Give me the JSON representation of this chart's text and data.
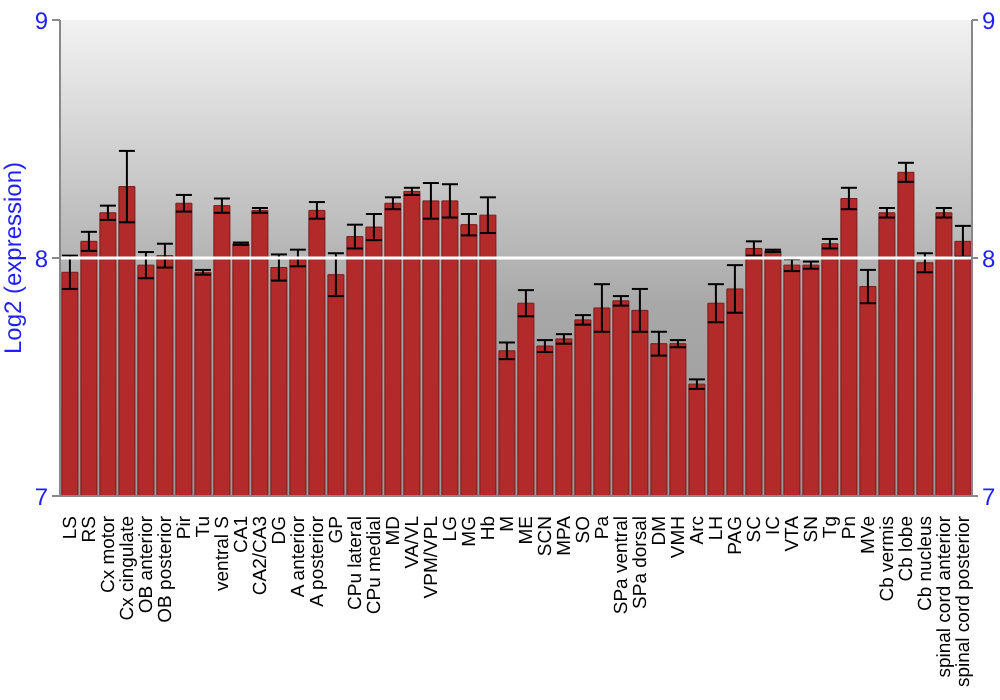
{
  "chart_data": {
    "type": "bar",
    "ylabel": "Log2 (expression)",
    "categories": [
      "LS",
      "RS",
      "Cx motor",
      "Cx cingulate",
      "OB anterior",
      "OB posterior",
      "Pir",
      "Tu",
      "ventral S",
      "CA1",
      "CA2/CA3",
      "DG",
      "A anterior",
      "A posterior",
      "GP",
      "CPu lateral",
      "CPu medial",
      "MD",
      "VA/VL",
      "VPM/VPL",
      "LG",
      "MG",
      "Hb",
      "M",
      "ME",
      "SCN",
      "MPA",
      "SO",
      "Pa",
      "SPa ventral",
      "SPa dorsal",
      "DM",
      "VMH",
      "Arc",
      "LH",
      "PAG",
      "SC",
      "IC",
      "VTA",
      "SN",
      "Tg",
      "Pn",
      "MVe",
      "Cb vermis",
      "Cb lobe",
      "Cb nucleus",
      "spinal cord anterior",
      "spinal cord posterior"
    ],
    "values": [
      7.94,
      8.07,
      8.19,
      8.3,
      7.97,
      8.01,
      8.23,
      7.94,
      8.22,
      8.06,
      8.2,
      7.96,
      8.0,
      8.2,
      7.93,
      8.09,
      8.13,
      8.23,
      8.28,
      8.24,
      8.24,
      8.14,
      8.18,
      7.61,
      7.81,
      7.63,
      7.66,
      7.74,
      7.79,
      7.82,
      7.78,
      7.64,
      7.64,
      7.47,
      7.81,
      7.87,
      8.04,
      8.03,
      7.97,
      7.97,
      8.06,
      8.25,
      7.88,
      8.19,
      8.36,
      7.98,
      8.19,
      8.07
    ],
    "errors": [
      0.07,
      0.04,
      0.03,
      0.15,
      0.055,
      0.05,
      0.035,
      0.01,
      0.03,
      0.005,
      0.01,
      0.055,
      0.035,
      0.035,
      0.09,
      0.05,
      0.055,
      0.025,
      0.015,
      0.075,
      0.07,
      0.045,
      0.075,
      0.035,
      0.055,
      0.025,
      0.02,
      0.02,
      0.1,
      0.02,
      0.09,
      0.05,
      0.015,
      0.02,
      0.08,
      0.1,
      0.03,
      0.005,
      0.025,
      0.015,
      0.02,
      0.045,
      0.07,
      0.02,
      0.04,
      0.04,
      0.02,
      0.065
    ],
    "color": "#b22a2a",
    "ylim": [
      7,
      9
    ],
    "yticks": [
      7,
      8,
      9
    ],
    "y2lim": [
      7,
      9
    ],
    "y2ticks": [
      7,
      8,
      9
    ],
    "ref_lines": [
      {
        "axis": "y",
        "value": 8,
        "color": "#ffffff"
      }
    ],
    "grid": false
  }
}
